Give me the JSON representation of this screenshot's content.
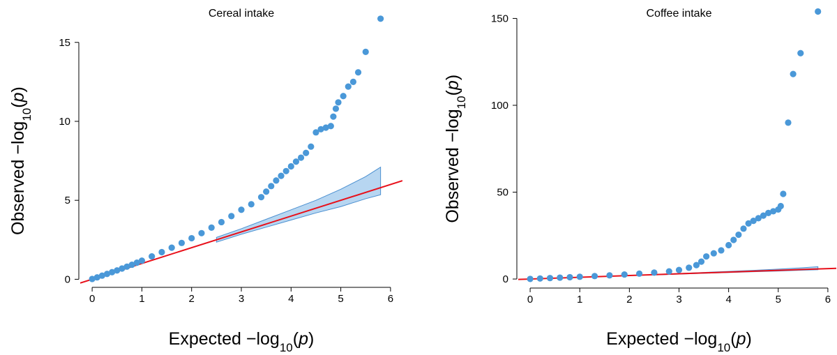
{
  "chart_data": [
    {
      "type": "scatter",
      "title": "Cereal intake",
      "xlabel": [
        "Expected  −log",
        "10",
        "(",
        "p",
        ")"
      ],
      "ylabel": [
        "Observed  −log",
        "10",
        "(",
        "p",
        ")"
      ],
      "xlim": [
        -0.24,
        6.24
      ],
      "ylim": [
        -0.6,
        16.8
      ],
      "xticks": [
        0,
        1,
        2,
        3,
        4,
        5,
        6
      ],
      "yticks": [
        0,
        5,
        10,
        15
      ],
      "color": "#4a98d8",
      "abline": {
        "intercept": 0,
        "slope": 1,
        "color": "#e8101a"
      },
      "band": {
        "color": "#b7d6f1",
        "edge": "#4a8fd0",
        "x": [
          2.5,
          3,
          3.5,
          4,
          4.5,
          5,
          5.5,
          5.8
        ],
        "upper": [
          2.65,
          3.2,
          3.8,
          4.4,
          5.0,
          5.7,
          6.5,
          7.1
        ],
        "lower": [
          2.35,
          2.85,
          3.3,
          3.75,
          4.2,
          4.6,
          5.1,
          5.35
        ]
      },
      "x": [
        0,
        0.1,
        0.2,
        0.3,
        0.4,
        0.5,
        0.6,
        0.7,
        0.8,
        0.9,
        1.0,
        1.2,
        1.4,
        1.6,
        1.8,
        2.0,
        2.2,
        2.4,
        2.6,
        2.8,
        3.0,
        3.2,
        3.4,
        3.5,
        3.6,
        3.7,
        3.8,
        3.9,
        4.0,
        4.1,
        4.2,
        4.3,
        4.4,
        4.5,
        4.6,
        4.7,
        4.8,
        4.85,
        4.9,
        4.95,
        5.05,
        5.15,
        5.25,
        5.35,
        5.5,
        5.8
      ],
      "y": [
        0.02,
        0.12,
        0.23,
        0.34,
        0.45,
        0.56,
        0.68,
        0.8,
        0.92,
        1.05,
        1.18,
        1.45,
        1.72,
        2.0,
        2.3,
        2.6,
        2.92,
        3.27,
        3.62,
        4.0,
        4.4,
        4.75,
        5.2,
        5.55,
        5.9,
        6.25,
        6.55,
        6.85,
        7.15,
        7.45,
        7.7,
        8.0,
        8.4,
        9.3,
        9.5,
        9.6,
        9.7,
        10.3,
        10.8,
        11.2,
        11.6,
        12.2,
        12.5,
        13.1,
        14.4,
        16.5
      ]
    },
    {
      "type": "scatter",
      "title": "Coffee intake",
      "xlabel": [
        "Expected  −log",
        "10",
        "(",
        "p",
        ")"
      ],
      "ylabel": [
        "Observed  −log",
        "10",
        "(",
        "p",
        ")"
      ],
      "xlim": [
        -0.24,
        6.17
      ],
      "ylim": [
        -6,
        157
      ],
      "xticks": [
        0,
        1,
        2,
        3,
        4,
        5,
        6
      ],
      "yticks": [
        0,
        50,
        100,
        150
      ],
      "color": "#4a98d8",
      "abline": {
        "intercept": 0,
        "slope": 1,
        "color": "#e8101a"
      },
      "band": {
        "color": "#b7d6f1",
        "edge": "#4a8fd0",
        "x": [
          2.5,
          3,
          3.5,
          4,
          4.5,
          5,
          5.5,
          5.8
        ],
        "upper": [
          2.65,
          3.2,
          3.8,
          4.4,
          5.0,
          5.7,
          6.5,
          7.1
        ],
        "lower": [
          2.35,
          2.85,
          3.3,
          3.75,
          4.2,
          4.6,
          5.1,
          5.35
        ]
      },
      "x": [
        0,
        0.2,
        0.4,
        0.6,
        0.8,
        1.0,
        1.3,
        1.6,
        1.9,
        2.2,
        2.5,
        2.8,
        3.0,
        3.2,
        3.35,
        3.45,
        3.55,
        3.7,
        3.85,
        4.0,
        4.1,
        4.2,
        4.3,
        4.4,
        4.5,
        4.6,
        4.7,
        4.8,
        4.9,
        5.0,
        5.05,
        5.1,
        5.2,
        5.3,
        5.45,
        5.8
      ],
      "y": [
        0.05,
        0.3,
        0.55,
        0.8,
        1.05,
        1.3,
        1.7,
        2.1,
        2.6,
        3.1,
        3.7,
        4.4,
        5.2,
        6.5,
        8.0,
        10.0,
        13.0,
        14.8,
        16.5,
        19.5,
        22.5,
        25.5,
        29.0,
        32.0,
        33.5,
        35.0,
        36.5,
        38.0,
        39.0,
        40.0,
        42.0,
        49.0,
        90.0,
        118.0,
        130.0,
        154.0
      ]
    }
  ]
}
